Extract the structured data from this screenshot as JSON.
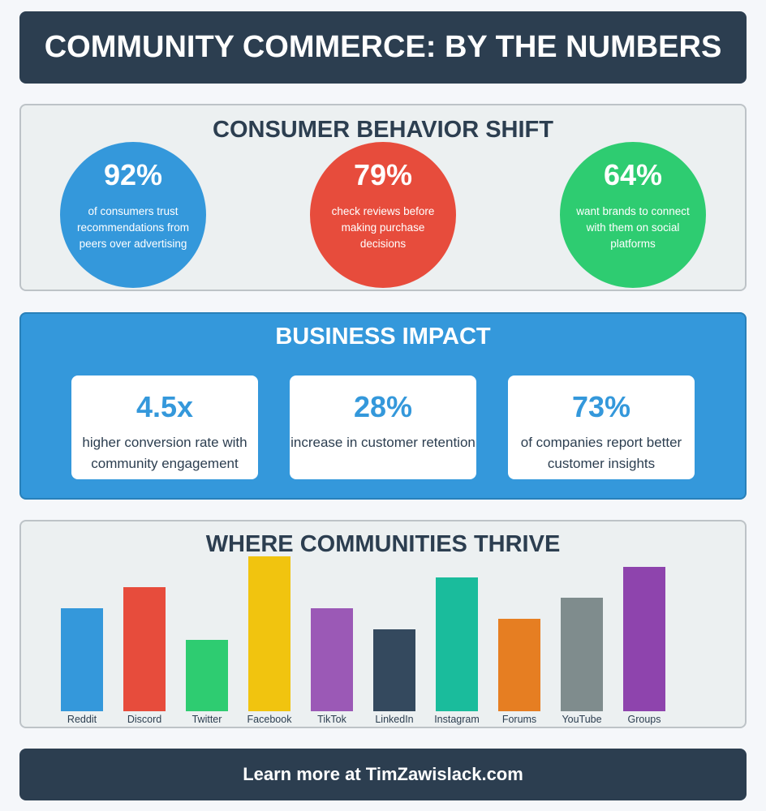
{
  "header": {
    "title": "COMMUNITY COMMERCE: BY THE NUMBERS"
  },
  "consumer_behavior": {
    "title": "CONSUMER BEHAVIOR SHIFT",
    "stats": [
      {
        "value": "92%",
        "text": "of consumers trust recommendations from peers over advertising",
        "color": "#3498db"
      },
      {
        "value": "79%",
        "text": "check reviews before making purchase decisions",
        "color": "#e74c3c"
      },
      {
        "value": "64%",
        "text": "want brands to connect with them on social platforms",
        "color": "#2ecc71"
      }
    ]
  },
  "business_impact": {
    "title": "BUSINESS IMPACT",
    "stats": [
      {
        "value": "4.5x",
        "text": "higher conversion rate with community engagement"
      },
      {
        "value": "28%",
        "text": "increase in customer retention"
      },
      {
        "value": "73%",
        "text": "of companies report better customer insights"
      }
    ]
  },
  "chart_data": {
    "type": "bar",
    "title": "WHERE COMMUNITIES THRIVE",
    "categories": [
      "Reddit",
      "Discord",
      "Twitter",
      "Facebook",
      "TikTok",
      "LinkedIn",
      "Instagram",
      "Forums",
      "YouTube",
      "Groups"
    ],
    "values": [
      127,
      153,
      88,
      191,
      127,
      101,
      165,
      114,
      140,
      178
    ],
    "colors": [
      "#3498db",
      "#e74c3c",
      "#2ecc71",
      "#f1c40f",
      "#9b59b6",
      "#34495e",
      "#1abc9c",
      "#e67e22",
      "#7f8c8d",
      "#8e44ad"
    ],
    "ylim": [
      0,
      200
    ]
  },
  "footer": {
    "text": "Learn more at TimZawislack.com"
  }
}
